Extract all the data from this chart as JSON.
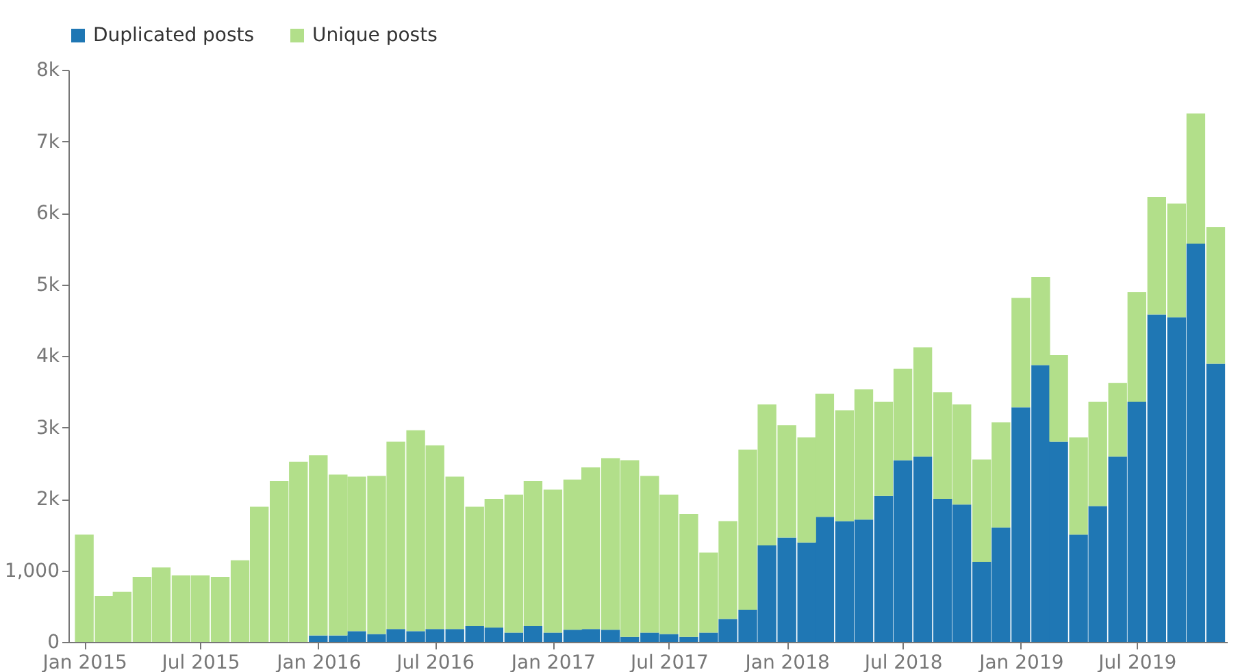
{
  "chart_data": {
    "type": "bar",
    "stacked": true,
    "x": [
      "2015-01",
      "2015-02",
      "2015-03",
      "2015-04",
      "2015-05",
      "2015-06",
      "2015-07",
      "2015-08",
      "2015-09",
      "2015-10",
      "2015-11",
      "2015-12",
      "2016-01",
      "2016-02",
      "2016-03",
      "2016-04",
      "2016-05",
      "2016-06",
      "2016-07",
      "2016-08",
      "2016-09",
      "2016-10",
      "2016-11",
      "2016-12",
      "2017-01",
      "2017-02",
      "2017-03",
      "2017-04",
      "2017-05",
      "2017-06",
      "2017-07",
      "2017-08",
      "2017-09",
      "2017-10",
      "2017-11",
      "2017-12",
      "2018-01",
      "2018-02",
      "2018-03",
      "2018-04",
      "2018-05",
      "2018-06",
      "2018-07",
      "2018-08",
      "2018-09",
      "2018-10",
      "2018-11",
      "2018-12",
      "2019-01",
      "2019-02",
      "2019-03",
      "2019-04",
      "2019-05",
      "2019-06",
      "2019-07",
      "2019-08",
      "2019-09",
      "2019-10",
      "2019-11"
    ],
    "series": [
      {
        "name": "Duplicated posts",
        "color": "#1f77b4",
        "values": [
          0,
          0,
          0,
          0,
          0,
          0,
          0,
          0,
          0,
          0,
          0,
          0,
          90,
          90,
          150,
          110,
          180,
          150,
          180,
          180,
          220,
          200,
          130,
          220,
          130,
          170,
          180,
          170,
          70,
          130,
          110,
          70,
          130,
          320,
          450,
          1350,
          1460,
          1390,
          1750,
          1690,
          1710,
          2040,
          2540,
          2590,
          2000,
          1920,
          1120,
          1600,
          3280,
          3870,
          2800,
          1500,
          1900,
          2590,
          3360,
          4580,
          4540,
          5570,
          3890
        ]
      },
      {
        "name": "Unique posts",
        "color": "#b2df8a",
        "values": [
          1500,
          640,
          700,
          910,
          1040,
          930,
          930,
          910,
          1140,
          1890,
          2250,
          2520,
          2520,
          2250,
          2160,
          2210,
          2620,
          2810,
          2570,
          2130,
          1670,
          1800,
          1930,
          2030,
          2000,
          2100,
          2260,
          2400,
          2470,
          2190,
          1950,
          1720,
          1120,
          1370,
          2240,
          1970,
          1570,
          1470,
          1720,
          1550,
          1820,
          1320,
          1280,
          1530,
          1490,
          1400,
          1430,
          1470,
          1530,
          1230,
          1210,
          1360,
          1460,
          1030,
          1530,
          1640,
          1590,
          1820,
          1910
        ]
      }
    ],
    "xlim": [
      "2014-12-18",
      "2019-11-08"
    ],
    "xticks": [
      {
        "value": "2015-01",
        "label": "Jan 2015"
      },
      {
        "value": "2015-07",
        "label": "Jul 2015"
      },
      {
        "value": "2016-01",
        "label": "Jan 2016"
      },
      {
        "value": "2016-07",
        "label": "Jul 2016"
      },
      {
        "value": "2017-01",
        "label": "Jan 2017"
      },
      {
        "value": "2017-07",
        "label": "Jul 2017"
      },
      {
        "value": "2018-01",
        "label": "Jan 2018"
      },
      {
        "value": "2018-07",
        "label": "Jul 2018"
      },
      {
        "value": "2019-01",
        "label": "Jan 2019"
      },
      {
        "value": "2019-07",
        "label": "Jul 2019"
      }
    ],
    "ylim": [
      0,
      8000
    ],
    "yticks": [
      0,
      {
        "value": 1000,
        "label": "1,000"
      },
      {
        "value": 2000,
        "label": "2k"
      },
      {
        "value": 3000,
        "label": "3k"
      },
      {
        "value": 4000,
        "label": "4k"
      },
      {
        "value": 5000,
        "label": "5k"
      },
      {
        "value": 6000,
        "label": "6k"
      },
      {
        "value": 7000,
        "label": "7k"
      },
      {
        "value": 8000,
        "label": "8k"
      }
    ],
    "grid": false,
    "legend": "top left"
  }
}
